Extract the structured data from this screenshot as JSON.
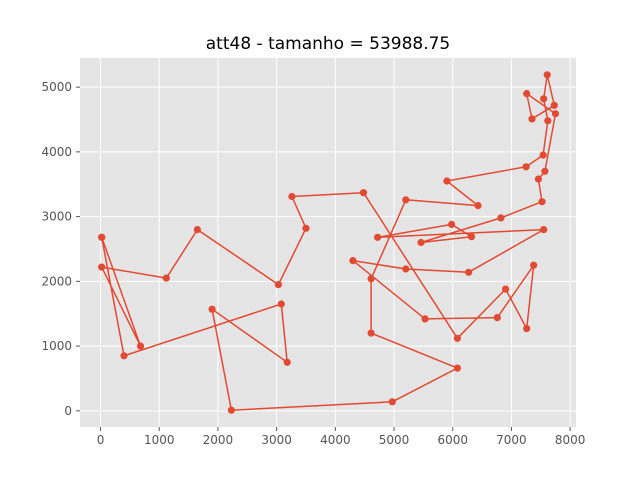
{
  "chart_data": {
    "type": "line",
    "title": "att48 - tamanho = 53988.75",
    "xlabel": "",
    "ylabel": "",
    "xlim": [
      -350,
      8100
    ],
    "ylim": [
      -250,
      5450
    ],
    "xticks": [
      0,
      1000,
      2000,
      3000,
      4000,
      5000,
      6000,
      7000,
      8000
    ],
    "yticks": [
      0,
      1000,
      2000,
      3000,
      4000,
      5000
    ],
    "grid": true,
    "legend": "none",
    "series": [
      {
        "color": "#E24A33",
        "marker": "circle",
        "points": [
          [
            20,
            2680
          ],
          [
            400,
            850
          ],
          [
            3080,
            1650
          ],
          [
            3180,
            750
          ],
          [
            1900,
            1570
          ],
          [
            2230,
            10
          ],
          [
            4970,
            140
          ],
          [
            6080,
            660
          ],
          [
            4610,
            1200
          ],
          [
            4610,
            2040
          ],
          [
            5200,
            3260
          ],
          [
            6430,
            3170
          ],
          [
            5900,
            3550
          ],
          [
            7250,
            3770
          ],
          [
            7540,
            3950
          ],
          [
            7620,
            4480
          ],
          [
            7550,
            4820
          ],
          [
            7610,
            5190
          ],
          [
            7730,
            4720
          ],
          [
            7350,
            4510
          ],
          [
            7260,
            4900
          ],
          [
            7750,
            4590
          ],
          [
            7570,
            3700
          ],
          [
            7460,
            3580
          ],
          [
            7520,
            3230
          ],
          [
            6820,
            2980
          ],
          [
            5460,
            2600
          ],
          [
            6320,
            2690
          ],
          [
            5980,
            2880
          ],
          [
            4720,
            2680
          ],
          [
            7550,
            2800
          ],
          [
            6270,
            2140
          ],
          [
            5200,
            2190
          ],
          [
            4300,
            2320
          ],
          [
            5530,
            1420
          ],
          [
            6760,
            1440
          ],
          [
            7380,
            2250
          ],
          [
            7260,
            1270
          ],
          [
            6900,
            1880
          ],
          [
            6080,
            1120
          ],
          [
            4480,
            3370
          ],
          [
            3260,
            3310
          ],
          [
            3500,
            2820
          ],
          [
            3030,
            1950
          ],
          [
            1650,
            2800
          ],
          [
            1120,
            2050
          ],
          [
            20,
            2220
          ],
          [
            680,
            1000
          ],
          [
            20,
            2680
          ]
        ]
      }
    ]
  }
}
